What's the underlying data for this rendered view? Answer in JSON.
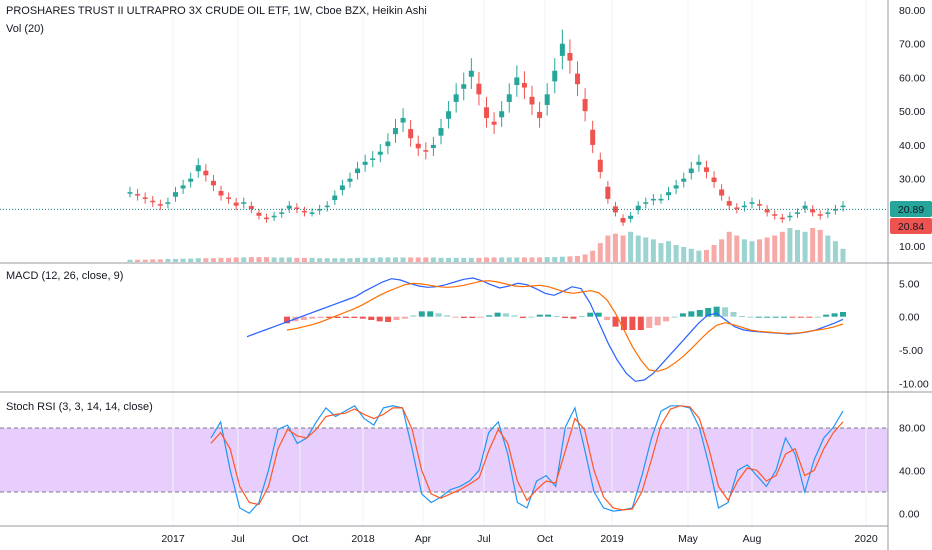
{
  "header": {
    "title": "PROSHARES TRUST II ULTRAPRO 3X CRUDE OIL ETF, 1W, Cboe BZX, Heikin Ashi",
    "vol_label": "Vol (20)",
    "macd_label": "MACD (12, 26, close, 9)",
    "stoch_label": "Stoch RSI (3, 3, 14, 14, close)"
  },
  "price_badges": {
    "last": "20.89",
    "second": "20.84"
  },
  "colors": {
    "up": "#26a69a",
    "down": "#ef5350",
    "up_vol": "#9ad3d0",
    "down_vol": "#f7a9a7",
    "macd_line": "#2962ff",
    "signal_line": "#ff6d00",
    "stoch_k": "#2196f3",
    "stoch_d": "#ff5722",
    "stoch_band": "#e1c2fb",
    "price_line": "#138484"
  },
  "chart_data": [
    {
      "type": "candlestick",
      "pane": "price",
      "ylim": [
        5,
        80
      ],
      "y_ticks": [
        "10.00",
        "20.00",
        "30.00",
        "40.00",
        "50.00",
        "60.00",
        "70.00",
        "80.00"
      ],
      "x_ticks": [
        "2017",
        "Jul",
        "Oct",
        "2018",
        "Apr",
        "Jul",
        "Oct",
        "2019",
        "May",
        "Aug",
        "2020"
      ],
      "last_price": 20.89,
      "second_price": 20.84,
      "closes": [
        26,
        25,
        24,
        23,
        22,
        23,
        26,
        28,
        30,
        34,
        31,
        28,
        25,
        24,
        22,
        23,
        21,
        19,
        18,
        19,
        20,
        22,
        21,
        20,
        20,
        21,
        22,
        25,
        28,
        30,
        33,
        35,
        36,
        38,
        41,
        45,
        48,
        42,
        39,
        38,
        40,
        45,
        50,
        55,
        58,
        62,
        55,
        48,
        46,
        50,
        55,
        60,
        57,
        52,
        48,
        55,
        62,
        70,
        65,
        58,
        50,
        40,
        32,
        24,
        20,
        17,
        19,
        22,
        23,
        24,
        24,
        26,
        28,
        30,
        33,
        35,
        32,
        29,
        25,
        22,
        21,
        22,
        23,
        22,
        20,
        19,
        18,
        19,
        20,
        22,
        20,
        19,
        20,
        21,
        22
      ],
      "volumes": [
        0.6,
        0.6,
        0.6,
        0.7,
        0.7,
        0.8,
        0.8,
        0.9,
        0.9,
        1.0,
        1.0,
        1.0,
        1.1,
        1.1,
        1.2,
        1.2,
        1.3,
        1.3,
        1.3,
        1.2,
        1.2,
        1.2,
        1.1,
        1.1,
        1.1,
        1.0,
        1.0,
        1.0,
        1.0,
        1.0,
        1.1,
        1.1,
        1.1,
        1.2,
        1.2,
        1.2,
        1.2,
        1.2,
        1.2,
        1.2,
        1.2,
        1.1,
        1.1,
        1.1,
        1.1,
        1.1,
        1.1,
        1.2,
        1.2,
        1.2,
        1.2,
        1.2,
        1.2,
        1.2,
        1.2,
        1.3,
        1.3,
        1.4,
        1.5,
        1.6,
        2.0,
        3.0,
        5.0,
        7.0,
        7.5,
        7.0,
        8.0,
        7.0,
        6.5,
        6.0,
        5.0,
        5.5,
        4.5,
        4.0,
        3.5,
        3.0,
        3.2,
        4.5,
        6.0,
        8.0,
        7.0,
        6.0,
        5.5,
        6.0,
        6.5,
        7.0,
        8.0,
        9.0,
        8.5,
        8.0,
        9.0,
        8.5,
        7.0,
        5.5,
        3.5
      ]
    },
    {
      "type": "line",
      "pane": "macd",
      "ylim": [
        -11,
        7
      ],
      "y_ticks": [
        "5.00",
        "0.00",
        "-5.00",
        "-10.00"
      ],
      "series": [
        {
          "name": "MACD",
          "values": [
            -3,
            -2.5,
            -2,
            -1.5,
            -1,
            -0.5,
            0,
            0.5,
            1,
            1.5,
            2,
            2.5,
            3,
            3.8,
            4.5,
            5.2,
            5.7,
            5.5,
            5,
            4.6,
            4.4,
            4.5,
            4.8,
            5.2,
            5.6,
            5.8,
            5.4,
            4.8,
            4.3,
            4.6,
            5,
            4.8,
            4.2,
            3.5,
            3.2,
            3.8,
            4.5,
            4.2,
            2,
            -1,
            -4,
            -6.5,
            -8.5,
            -9.7,
            -9.5,
            -8.5,
            -7,
            -5.5,
            -4,
            -2.5,
            -1,
            0.2,
            0.5,
            -0.5,
            -1.5,
            -2,
            -2.2,
            -2.3,
            -2.4,
            -2.5,
            -2.6,
            -2.5,
            -2.3,
            -2,
            -1.5,
            -1,
            -0.4
          ]
        },
        {
          "name": "Signal",
          "values": [
            -2,
            -1.8,
            -1.5,
            -1.2,
            -0.8,
            -0.3,
            0.2,
            0.7,
            1.2,
            1.8,
            2.5,
            3.2,
            3.8,
            4.3,
            4.8,
            5,
            4.9,
            4.7,
            4.5,
            4.4,
            4.5,
            4.7,
            5,
            5.3,
            5.4,
            5.2,
            4.9,
            4.6,
            4.5,
            4.6,
            4.7,
            4.5,
            4.1,
            3.7,
            3.5,
            3.7,
            3.9,
            3.6,
            2.5,
            0.5,
            -2,
            -4.5,
            -6.5,
            -8,
            -8.2,
            -7.8,
            -7,
            -6,
            -4.8,
            -3.5,
            -2.3,
            -1.3,
            -0.9,
            -1.2,
            -1.6,
            -2,
            -2.2,
            -2.3,
            -2.4,
            -2.5,
            -2.5,
            -2.4,
            -2.2,
            -2,
            -1.8,
            -1.5,
            -1.1
          ]
        },
        {
          "name": "Histogram",
          "values": [
            -1,
            -0.7,
            -0.5,
            -0.3,
            -0.2,
            -0.2,
            -0.2,
            -0.2,
            -0.2,
            -0.3,
            -0.5,
            -0.7,
            -0.8,
            -0.5,
            -0.3,
            0.2,
            0.8,
            0.8,
            0.5,
            0.2,
            -0.1,
            -0.2,
            -0.2,
            -0.1,
            0.2,
            0.6,
            0.5,
            0.2,
            -0.2,
            0,
            0.3,
            0.3,
            0.1,
            -0.2,
            -0.3,
            0.1,
            0.6,
            0.6,
            -0.5,
            -1.5,
            -2,
            -2,
            -2,
            -1.7,
            -1.3,
            -0.7,
            0,
            0.5,
            0.8,
            1,
            1.3,
            1.5,
            1.4,
            0.7,
            0.1,
            0,
            0,
            0,
            0,
            0,
            -0.1,
            -0.1,
            -0.1,
            0,
            0.3,
            0.5,
            0.7
          ]
        }
      ]
    },
    {
      "type": "line",
      "pane": "stoch_rsi",
      "ylim": [
        -10,
        110
      ],
      "band": [
        20,
        80
      ],
      "y_ticks": [
        "80.00",
        "40.00",
        "0.00"
      ],
      "series": [
        {
          "name": "%K",
          "values": [
            70,
            85,
            40,
            5,
            0,
            10,
            40,
            78,
            82,
            65,
            70,
            85,
            98,
            90,
            95,
            100,
            88,
            82,
            98,
            100,
            98,
            60,
            18,
            10,
            15,
            22,
            25,
            30,
            40,
            75,
            85,
            55,
            10,
            5,
            30,
            35,
            25,
            80,
            98,
            60,
            20,
            5,
            2,
            3,
            5,
            35,
            70,
            95,
            100,
            100,
            98,
            80,
            45,
            5,
            10,
            40,
            45,
            35,
            25,
            40,
            70,
            55,
            20,
            50,
            70,
            80,
            95
          ]
        },
        {
          "name": "%D",
          "values": [
            65,
            75,
            60,
            25,
            10,
            8,
            25,
            60,
            78,
            72,
            70,
            78,
            90,
            92,
            93,
            97,
            92,
            88,
            92,
            98,
            98,
            78,
            40,
            18,
            14,
            18,
            22,
            27,
            33,
            58,
            78,
            65,
            30,
            12,
            22,
            30,
            28,
            58,
            88,
            78,
            40,
            15,
            5,
            3,
            4,
            20,
            50,
            82,
            97,
            100,
            99,
            88,
            60,
            25,
            12,
            30,
            42,
            40,
            30,
            35,
            55,
            60,
            35,
            40,
            60,
            75,
            85
          ]
        }
      ]
    }
  ]
}
